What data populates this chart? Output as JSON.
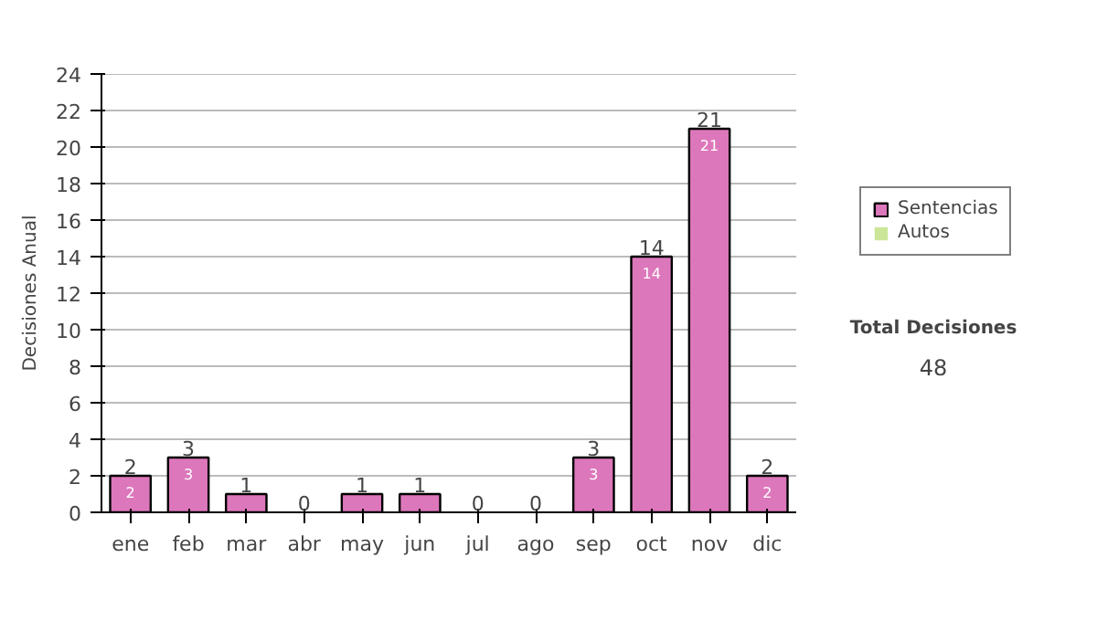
{
  "chart_data": {
    "type": "bar",
    "stacked": true,
    "ylabel": "Decisiones Anual",
    "categories": [
      "ene",
      "feb",
      "mar",
      "abr",
      "may",
      "jun",
      "jul",
      "ago",
      "sep",
      "oct",
      "nov",
      "dic"
    ],
    "series": [
      {
        "name": "Sentencias",
        "color": "#dd77bb",
        "values": [
          2,
          3,
          1,
          0,
          1,
          1,
          0,
          0,
          3,
          14,
          21,
          2
        ],
        "value_labels": [
          "2",
          "3",
          null,
          null,
          null,
          null,
          null,
          null,
          "3",
          "14",
          "21",
          "2"
        ]
      },
      {
        "name": "Autos",
        "color": "#cce699",
        "values": [
          0,
          0,
          0,
          0,
          0,
          0,
          0,
          0,
          0,
          0,
          0,
          0
        ]
      }
    ],
    "totals": [
      "2",
      "3",
      "1",
      "0",
      "1",
      "1",
      "0",
      "0",
      "3",
      "14",
      "21",
      "2"
    ],
    "ylim": [
      0,
      24
    ],
    "yticks": [
      0,
      2,
      4,
      6,
      8,
      10,
      12,
      14,
      16,
      18,
      20,
      22,
      24
    ],
    "grid": "y",
    "legend": "right",
    "annotations": [
      "Total Decisiones",
      "48"
    ]
  }
}
